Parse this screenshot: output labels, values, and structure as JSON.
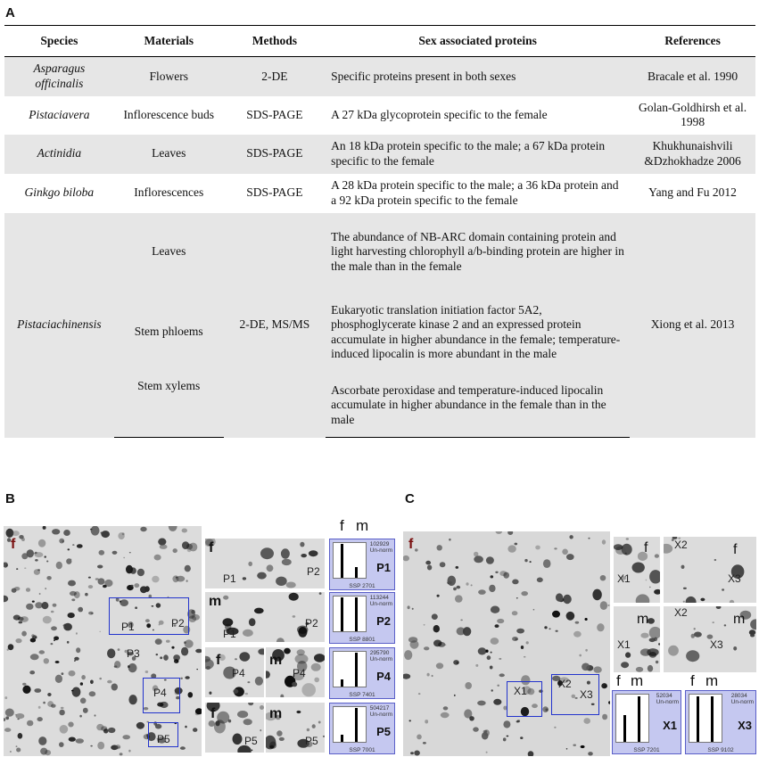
{
  "panels": {
    "a": "A",
    "b": "B",
    "c": "C"
  },
  "table": {
    "headers": [
      "Species",
      "Materials",
      "Methods",
      "Sex associated proteins",
      "References"
    ],
    "rows": [
      {
        "species": "Asparagus officinalis",
        "materials": "Flowers",
        "methods": "2-DE",
        "proteins": "Specific proteins present in both sexes",
        "references": "Bracale et al. 1990"
      },
      {
        "species": "Pistaciavera",
        "materials": "Inflorescence buds",
        "methods": "SDS-PAGE",
        "proteins": "A 27 kDa glycoprotein specific to the female",
        "references": "Golan-Goldhirsh et al. 1998"
      },
      {
        "species": "Actinidia",
        "materials": "Leaves",
        "methods": "SDS-PAGE",
        "proteins": "An 18 kDa protein specific to the male; a 67 kDa protein specific to the female",
        "references": "Khukhunaishvili &Dzhokhadze 2006"
      },
      {
        "species": "Ginkgo biloba",
        "materials": "Inflorescences",
        "methods": "SDS-PAGE",
        "proteins": "A 28 kDa protein specific to the male; a 36 kDa protein and a 92 kDa protein specific to the female",
        "references": "Yang and Fu 2012"
      }
    ],
    "group": {
      "species": "Pistaciachinensis",
      "methods": "2-DE, MS/MS",
      "references": "Xiong et al. 2013",
      "subrows": [
        {
          "materials": "Leaves",
          "proteins": "The abundance of NB-ARC domain containing protein and light harvesting chlorophyll a/b-binding protein are higher in the male than in the female"
        },
        {
          "materials": "Stem phloems",
          "proteins": "Eukaryotic translation initiation factor 5A2, phosphoglycerate kinase 2 and an expressed protein accumulate in higher abundance in the female;  temperature-induced lipocalin is more abundant in the male"
        },
        {
          "materials": "Stem xylems",
          "proteins": "Ascorbate peroxidase and temperature-induced lipocalin accumulate in higher abundance in the female than in the male"
        }
      ]
    }
  },
  "gel_b": {
    "sex": "f",
    "spots": [
      "P1",
      "P2",
      "P3",
      "P4",
      "P5"
    ],
    "zoom": {
      "f": "f",
      "m": "m"
    },
    "hist_header": {
      "f": "f",
      "m": "m"
    },
    "hists": [
      {
        "label": "P1",
        "num": "102929",
        "norm": "Un-norm",
        "ssp": "SSP 2701",
        "f": 0.95,
        "m": 0.3
      },
      {
        "label": "P2",
        "num": "113244",
        "norm": "Un-norm",
        "ssp": "SSP 8801",
        "f": 0.95,
        "m": 0.95
      },
      {
        "label": "P4",
        "num": "295790",
        "norm": "Un-norm",
        "ssp": "SSP 7401",
        "f": 0.2,
        "m": 0.95
      },
      {
        "label": "P5",
        "num": "504217",
        "norm": "Un-norm",
        "ssp": "SSP 7001",
        "f": 0.2,
        "m": 0.95
      }
    ]
  },
  "gel_c": {
    "sex": "f",
    "spots": [
      "X1",
      "X2",
      "X3"
    ],
    "zoom": {
      "f": "f",
      "m": "m"
    },
    "hist_header": {
      "f": "f",
      "m": "m"
    },
    "hists": [
      {
        "label": "X1",
        "num": "52034",
        "norm": "Un-norm",
        "ssp": "SSP 7201",
        "f": 0.55,
        "m": 0.95
      },
      {
        "label": "X3",
        "num": "28034",
        "norm": "Un-norm",
        "ssp": "SSP 9102",
        "f": 0.95,
        "m": 0.95
      }
    ]
  }
}
